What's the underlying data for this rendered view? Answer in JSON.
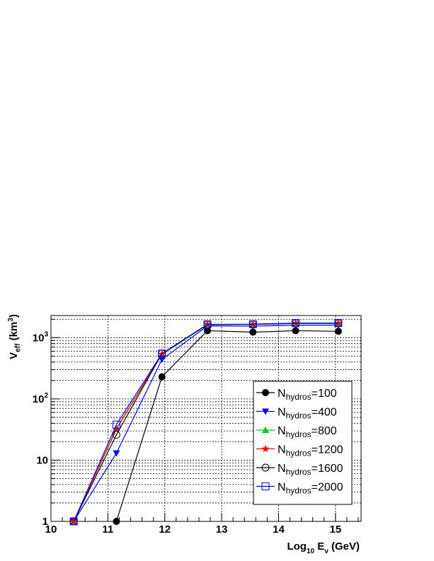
{
  "chart_data": {
    "type": "line",
    "x": [
      10.4,
      11.15,
      11.95,
      12.75,
      13.55,
      14.3,
      15.05
    ],
    "xlim": [
      10,
      15.45
    ],
    "ylim": [
      1,
      2300
    ],
    "log_y": true,
    "grid": true,
    "legend_placement": "right",
    "x_ticks": [
      {
        "value": 10,
        "label": "10"
      },
      {
        "value": 11,
        "label": "11"
      },
      {
        "value": 12,
        "label": "12"
      },
      {
        "value": 13,
        "label": "13"
      },
      {
        "value": 14,
        "label": "14"
      },
      {
        "value": 15,
        "label": "15"
      }
    ],
    "y_ticks": [
      {
        "value": 1,
        "base": "1",
        "exp": ""
      },
      {
        "value": 10,
        "base": "10",
        "exp": ""
      },
      {
        "value": 100,
        "base": "10",
        "exp": "2"
      },
      {
        "value": 1000,
        "base": "10",
        "exp": "3"
      }
    ],
    "xlabel": {
      "main": "Log",
      "sub": "10",
      "var": " E",
      "var_sub": "ν",
      "unit": " (GeV)"
    },
    "ylabel": {
      "main": "V",
      "sub": "eff",
      "unit_open": " (km",
      "unit_sup": "3",
      "unit_close": ")"
    },
    "series": [
      {
        "name": "100",
        "color": "#000000",
        "marker": "filled-circle",
        "points": [
          [
            11.15,
            1
          ],
          [
            11.95,
            230
          ],
          [
            12.75,
            1300
          ],
          [
            13.55,
            1230
          ],
          [
            14.3,
            1300
          ],
          [
            15.05,
            1270
          ]
        ]
      },
      {
        "name": "400",
        "color": "#0000ff",
        "marker": "filled-triangle-down",
        "points": [
          [
            10.4,
            1
          ],
          [
            11.15,
            13
          ],
          [
            11.95,
            440
          ],
          [
            12.75,
            1560
          ],
          [
            13.55,
            1540
          ],
          [
            14.3,
            1600
          ],
          [
            15.05,
            1600
          ]
        ]
      },
      {
        "name": "800",
        "color": "#00cc00",
        "marker": "filled-triangle-up",
        "points": [
          [
            10.4,
            1
          ],
          [
            11.15,
            33
          ],
          [
            11.95,
            530
          ],
          [
            12.75,
            1620
          ],
          [
            13.55,
            1640
          ],
          [
            14.3,
            1700
          ],
          [
            15.05,
            1700
          ]
        ]
      },
      {
        "name": "1200",
        "color": "#ff0000",
        "marker": "filled-star",
        "points": [
          [
            10.4,
            1
          ],
          [
            11.15,
            32
          ],
          [
            11.95,
            540
          ],
          [
            12.75,
            1640
          ],
          [
            13.55,
            1650
          ],
          [
            14.3,
            1720
          ],
          [
            15.05,
            1720
          ]
        ]
      },
      {
        "name": "1600",
        "color": "#000000",
        "marker": "open-circle",
        "points": [
          [
            10.4,
            1
          ],
          [
            11.15,
            26
          ],
          [
            11.95,
            550
          ],
          [
            12.75,
            1640
          ],
          [
            13.55,
            1650
          ],
          [
            14.3,
            1720
          ],
          [
            15.05,
            1720
          ]
        ]
      },
      {
        "name": "2000",
        "color": "#0000ff",
        "marker": "open-square",
        "points": [
          [
            10.4,
            1
          ],
          [
            11.15,
            38
          ],
          [
            11.95,
            550
          ],
          [
            12.75,
            1650
          ],
          [
            13.55,
            1660
          ],
          [
            14.3,
            1730
          ],
          [
            15.05,
            1730
          ]
        ]
      }
    ],
    "legend": {
      "prefix": "N",
      "subscript": "hydros",
      "separator": "="
    }
  }
}
